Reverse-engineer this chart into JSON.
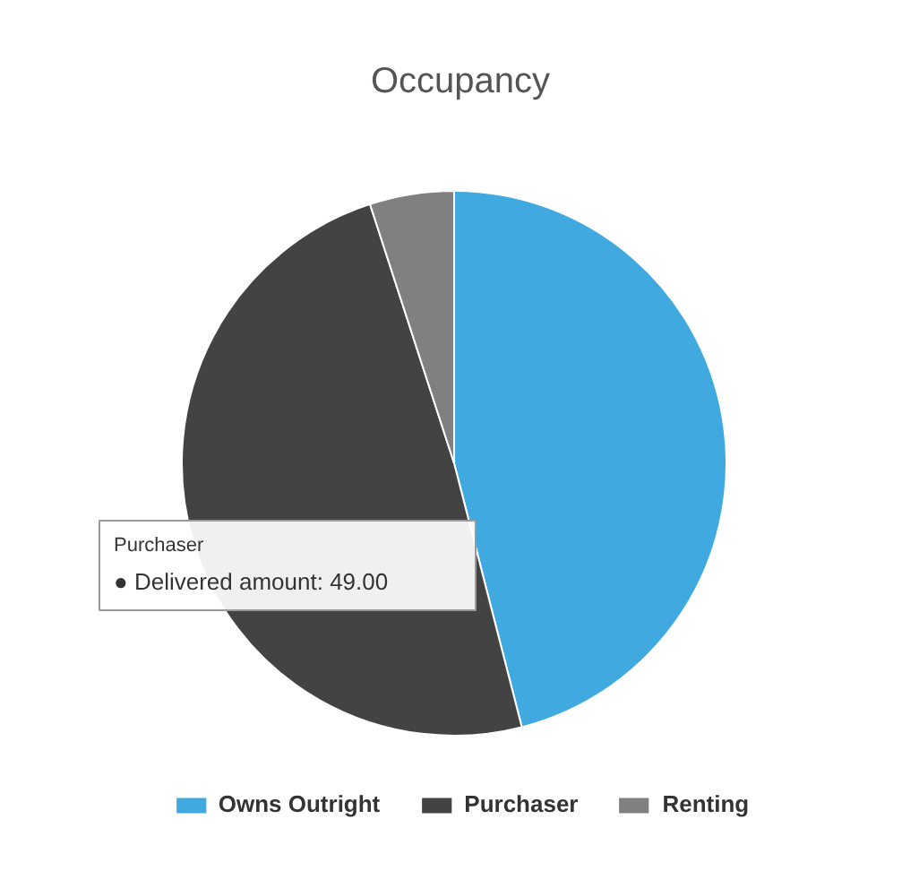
{
  "chart_data": {
    "type": "pie",
    "title": "Occupancy",
    "categories": [
      "Owns Outright",
      "Purchaser",
      "Renting"
    ],
    "values": [
      46,
      49,
      5
    ],
    "colors": [
      "#3fa9e0",
      "#434343",
      "#808080"
    ],
    "legend": "bottom",
    "annotations": [
      "Purchaser",
      "● Delivered amount: 49.00"
    ]
  }
}
